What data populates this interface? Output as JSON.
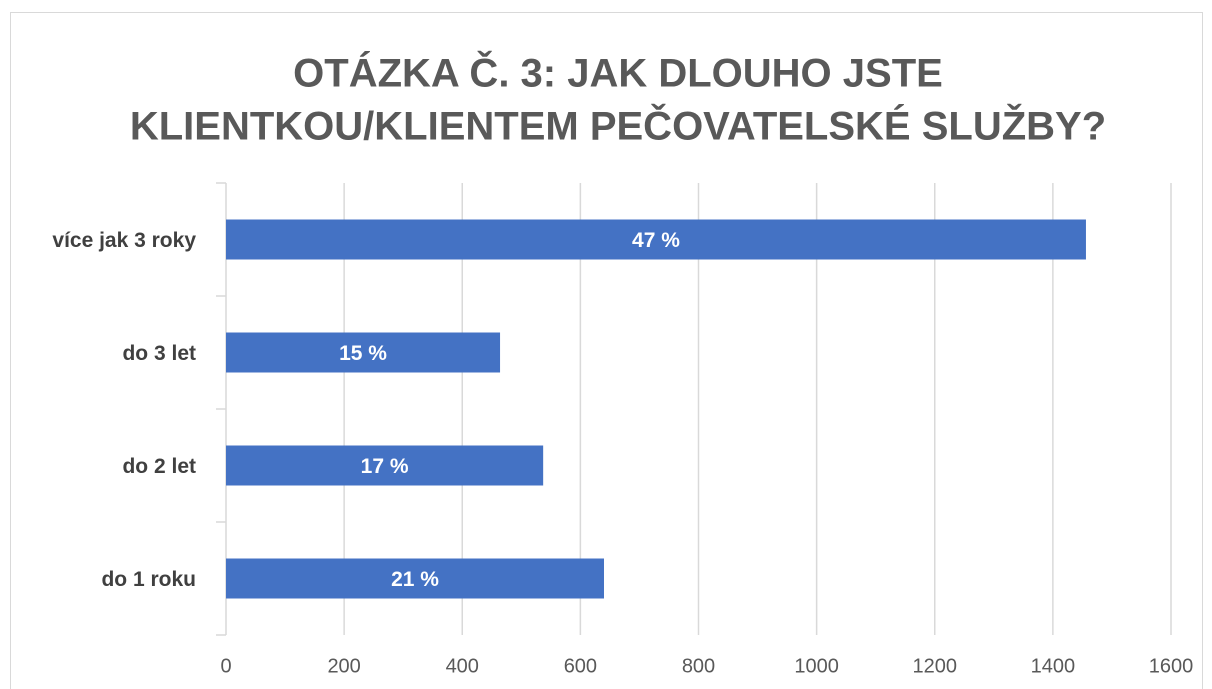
{
  "chart_data": {
    "type": "hbar",
    "title": [
      "OTÁZKA Č. 3: JAK DLOUHO JSTE",
      "KLIENTKOU/KLIENTEM PEČOVATELSKÉ SLUŽBY?"
    ],
    "categories": [
      "více jak 3 roky",
      "do 3 let",
      "do 2 let",
      "do 1 roku"
    ],
    "values": [
      1456,
      464,
      537,
      640
    ],
    "data_labels": [
      "47 %",
      "15 %",
      "17 %",
      "21 %"
    ],
    "color": "#4472c4",
    "xlim": [
      0,
      1600
    ],
    "xticks": [
      0,
      200,
      400,
      600,
      800,
      1000,
      1200,
      1400,
      1600
    ],
    "grid": true
  }
}
